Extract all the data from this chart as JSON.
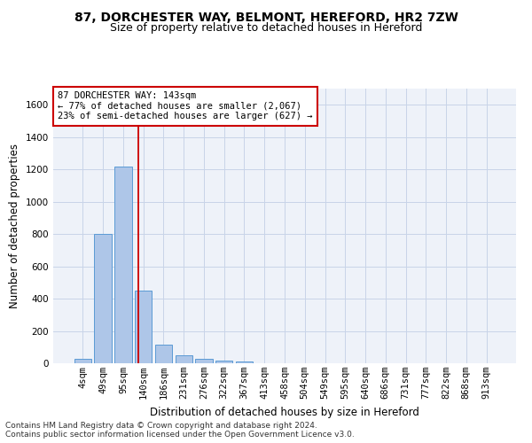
{
  "title_line1": "87, DORCHESTER WAY, BELMONT, HEREFORD, HR2 7ZW",
  "title_line2": "Size of property relative to detached houses in Hereford",
  "xlabel": "Distribution of detached houses by size in Hereford",
  "ylabel": "Number of detached properties",
  "footer_line1": "Contains HM Land Registry data © Crown copyright and database right 2024.",
  "footer_line2": "Contains public sector information licensed under the Open Government Licence v3.0.",
  "bar_labels": [
    "4sqm",
    "49sqm",
    "95sqm",
    "140sqm",
    "186sqm",
    "231sqm",
    "276sqm",
    "322sqm",
    "367sqm",
    "413sqm",
    "458sqm",
    "504sqm",
    "549sqm",
    "595sqm",
    "640sqm",
    "686sqm",
    "731sqm",
    "777sqm",
    "822sqm",
    "868sqm",
    "913sqm"
  ],
  "bar_values": [
    25,
    800,
    1220,
    450,
    115,
    50,
    28,
    18,
    12,
    0,
    0,
    0,
    0,
    0,
    0,
    0,
    0,
    0,
    0,
    0,
    0
  ],
  "bar_color": "#aec6e8",
  "bar_edge_color": "#5b9bd5",
  "grid_color": "#c8d4e8",
  "background_color": "#eef2f9",
  "vline_x": 2.77,
  "vline_color": "#cc0000",
  "annotation_text": "87 DORCHESTER WAY: 143sqm\n← 77% of detached houses are smaller (2,067)\n23% of semi-detached houses are larger (627) →",
  "annotation_box_color": "#ffffff",
  "annotation_box_edge": "#cc0000",
  "ylim": [
    0,
    1700
  ],
  "yticks": [
    0,
    200,
    400,
    600,
    800,
    1000,
    1200,
    1400,
    1600
  ],
  "title_fontsize": 10,
  "subtitle_fontsize": 9,
  "axis_label_fontsize": 8.5,
  "tick_fontsize": 7.5,
  "annotation_fontsize": 7.5,
  "footer_fontsize": 6.5
}
